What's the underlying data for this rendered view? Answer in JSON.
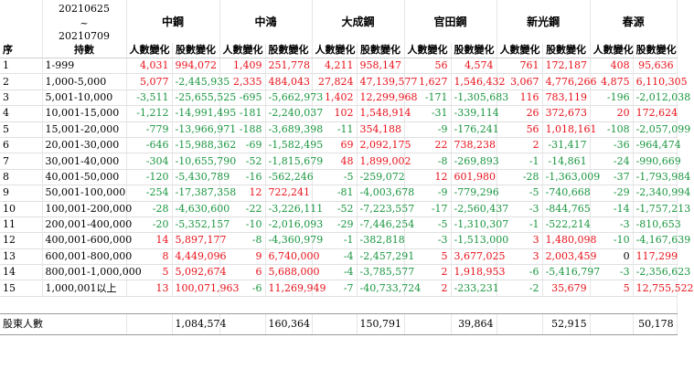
{
  "header": {
    "date_start": "20210625",
    "date_sep": "~",
    "date_end": "20210709",
    "col_seq": "序",
    "col_level": "持數",
    "sub_people": "人數變化",
    "sub_shares": "股數變化",
    "brokers": [
      "中鋼",
      "中鴻",
      "大成鋼",
      "官田鋼",
      "新光鋼",
      "春源"
    ]
  },
  "rows": [
    {
      "seq": "1",
      "level": "1-999",
      "cells": [
        [
          "4,031",
          "pos"
        ],
        [
          "994,072",
          "pos"
        ],
        [
          "1,409",
          "pos"
        ],
        [
          "251,778",
          "pos"
        ],
        [
          "4,211",
          "pos"
        ],
        [
          "958,147",
          "pos"
        ],
        [
          "56",
          "pos"
        ],
        [
          "4,574",
          "pos"
        ],
        [
          "761",
          "pos"
        ],
        [
          "172,187",
          "pos"
        ],
        [
          "408",
          "pos"
        ],
        [
          "95,636",
          "pos"
        ]
      ]
    },
    {
      "seq": "2",
      "level": "1,000-5,000",
      "cells": [
        [
          "5,077",
          "pos"
        ],
        [
          "-2,445,935",
          "neg"
        ],
        [
          "2,335",
          "pos"
        ],
        [
          "484,043",
          "pos"
        ],
        [
          "27,824",
          "pos"
        ],
        [
          "47,139,577",
          "pos"
        ],
        [
          "1,627",
          "pos"
        ],
        [
          "1,546,432",
          "pos"
        ],
        [
          "3,067",
          "pos"
        ],
        [
          "4,776,266",
          "pos"
        ],
        [
          "4,875",
          "pos"
        ],
        [
          "6,110,305",
          "pos"
        ]
      ]
    },
    {
      "seq": "3",
      "level": "5,001-10,000",
      "cells": [
        [
          "-3,511",
          "neg"
        ],
        [
          "-25,655,525",
          "neg"
        ],
        [
          "-695",
          "neg"
        ],
        [
          "-5,662,973",
          "neg"
        ],
        [
          "1,402",
          "pos"
        ],
        [
          "12,299,968",
          "pos"
        ],
        [
          "-171",
          "neg"
        ],
        [
          "-1,305,683",
          "neg"
        ],
        [
          "116",
          "pos"
        ],
        [
          "783,119",
          "pos"
        ],
        [
          "-196",
          "neg"
        ],
        [
          "-2,012,038",
          "neg"
        ]
      ]
    },
    {
      "seq": "4",
      "level": "10,001-15,000",
      "cells": [
        [
          "-1,212",
          "neg"
        ],
        [
          "-14,991,495",
          "neg"
        ],
        [
          "-181",
          "neg"
        ],
        [
          "-2,240,037",
          "neg"
        ],
        [
          "102",
          "pos"
        ],
        [
          "1,548,914",
          "pos"
        ],
        [
          "-31",
          "neg"
        ],
        [
          "-339,114",
          "neg"
        ],
        [
          "26",
          "pos"
        ],
        [
          "372,673",
          "pos"
        ],
        [
          "20",
          "pos"
        ],
        [
          "172,624",
          "pos"
        ]
      ]
    },
    {
      "seq": "5",
      "level": "15,001-20,000",
      "cells": [
        [
          "-779",
          "neg"
        ],
        [
          "-13,966,971",
          "neg"
        ],
        [
          "-188",
          "neg"
        ],
        [
          "-3,689,398",
          "neg"
        ],
        [
          "-11",
          "neg"
        ],
        [
          "354,188",
          "pos"
        ],
        [
          "-9",
          "neg"
        ],
        [
          "-176,241",
          "neg"
        ],
        [
          "56",
          "pos"
        ],
        [
          "1,018,161",
          "pos"
        ],
        [
          "-108",
          "neg"
        ],
        [
          "-2,057,099",
          "neg"
        ]
      ]
    },
    {
      "seq": "6",
      "level": "20,001-30,000",
      "cells": [
        [
          "-646",
          "neg"
        ],
        [
          "-15,988,362",
          "neg"
        ],
        [
          "-69",
          "neg"
        ],
        [
          "-1,582,495",
          "neg"
        ],
        [
          "69",
          "pos"
        ],
        [
          "2,092,175",
          "pos"
        ],
        [
          "22",
          "pos"
        ],
        [
          "738,238",
          "pos"
        ],
        [
          "2",
          "pos"
        ],
        [
          "-31,417",
          "neg"
        ],
        [
          "-36",
          "neg"
        ],
        [
          "-964,474",
          "neg"
        ]
      ]
    },
    {
      "seq": "7",
      "level": "30,001-40,000",
      "cells": [
        [
          "-304",
          "neg"
        ],
        [
          "-10,655,790",
          "neg"
        ],
        [
          "-52",
          "neg"
        ],
        [
          "-1,815,679",
          "neg"
        ],
        [
          "48",
          "pos"
        ],
        [
          "1,899,002",
          "pos"
        ],
        [
          "-8",
          "neg"
        ],
        [
          "-269,893",
          "neg"
        ],
        [
          "-1",
          "neg"
        ],
        [
          "-14,861",
          "neg"
        ],
        [
          "-24",
          "neg"
        ],
        [
          "-990,669",
          "neg"
        ]
      ]
    },
    {
      "seq": "8",
      "level": "40,001-50,000",
      "cells": [
        [
          "-120",
          "neg"
        ],
        [
          "-5,430,789",
          "neg"
        ],
        [
          "-16",
          "neg"
        ],
        [
          "-562,246",
          "neg"
        ],
        [
          "-5",
          "neg"
        ],
        [
          "-259,072",
          "neg"
        ],
        [
          "12",
          "pos"
        ],
        [
          "601,980",
          "pos"
        ],
        [
          "-28",
          "neg"
        ],
        [
          "-1,363,009",
          "neg"
        ],
        [
          "-37",
          "neg"
        ],
        [
          "-1,793,984",
          "neg"
        ]
      ]
    },
    {
      "seq": "9",
      "level": "50,001-100,000",
      "cells": [
        [
          "-254",
          "neg"
        ],
        [
          "-17,387,358",
          "neg"
        ],
        [
          "12",
          "pos"
        ],
        [
          "722,241",
          "pos"
        ],
        [
          "-81",
          "neg"
        ],
        [
          "-4,003,678",
          "neg"
        ],
        [
          "-9",
          "neg"
        ],
        [
          "-779,296",
          "neg"
        ],
        [
          "-5",
          "neg"
        ],
        [
          "-740,668",
          "neg"
        ],
        [
          "-29",
          "neg"
        ],
        [
          "-2,340,994",
          "neg"
        ]
      ]
    },
    {
      "seq": "10",
      "level": "100,001-200,000",
      "cells": [
        [
          "-28",
          "neg"
        ],
        [
          "-4,630,600",
          "neg"
        ],
        [
          "-22",
          "neg"
        ],
        [
          "-3,226,111",
          "neg"
        ],
        [
          "-52",
          "neg"
        ],
        [
          "-7,223,557",
          "neg"
        ],
        [
          "-17",
          "neg"
        ],
        [
          "-2,560,437",
          "neg"
        ],
        [
          "-3",
          "neg"
        ],
        [
          "-844,765",
          "neg"
        ],
        [
          "-14",
          "neg"
        ],
        [
          "-1,757,213",
          "neg"
        ]
      ]
    },
    {
      "seq": "11",
      "level": "200,001-400,000",
      "cells": [
        [
          "-20",
          "neg"
        ],
        [
          "-5,352,157",
          "neg"
        ],
        [
          "-10",
          "neg"
        ],
        [
          "-2,016,093",
          "neg"
        ],
        [
          "-29",
          "neg"
        ],
        [
          "-7,446,254",
          "neg"
        ],
        [
          "-5",
          "neg"
        ],
        [
          "-1,310,307",
          "neg"
        ],
        [
          "-1",
          "neg"
        ],
        [
          "-522,214",
          "neg"
        ],
        [
          "-3",
          "neg"
        ],
        [
          "-810,653",
          "neg"
        ]
      ]
    },
    {
      "seq": "12",
      "level": "400,001-600,000",
      "cells": [
        [
          "14",
          "pos"
        ],
        [
          "5,897,177",
          "pos"
        ],
        [
          "-8",
          "neg"
        ],
        [
          "-4,360,979",
          "neg"
        ],
        [
          "-1",
          "neg"
        ],
        [
          "-382,818",
          "neg"
        ],
        [
          "-3",
          "neg"
        ],
        [
          "-1,513,000",
          "neg"
        ],
        [
          "3",
          "pos"
        ],
        [
          "1,480,098",
          "pos"
        ],
        [
          "-10",
          "neg"
        ],
        [
          "-4,167,639",
          "neg"
        ]
      ]
    },
    {
      "seq": "13",
      "level": "600,001-800,000",
      "cells": [
        [
          "8",
          "pos"
        ],
        [
          "4,449,096",
          "pos"
        ],
        [
          "9",
          "pos"
        ],
        [
          "6,740,000",
          "pos"
        ],
        [
          "-4",
          "neg"
        ],
        [
          "-2,457,291",
          "neg"
        ],
        [
          "5",
          "pos"
        ],
        [
          "3,677,025",
          "pos"
        ],
        [
          "3",
          "pos"
        ],
        [
          "2,003,459",
          "pos"
        ],
        [
          "0",
          "blk"
        ],
        [
          "117,299",
          "pos"
        ]
      ]
    },
    {
      "seq": "14",
      "level": "800,001-1,000,000",
      "cells": [
        [
          "5",
          "pos"
        ],
        [
          "5,092,674",
          "pos"
        ],
        [
          "6",
          "pos"
        ],
        [
          "5,688,000",
          "pos"
        ],
        [
          "-4",
          "neg"
        ],
        [
          "-3,785,577",
          "neg"
        ],
        [
          "2",
          "pos"
        ],
        [
          "1,918,953",
          "pos"
        ],
        [
          "-6",
          "neg"
        ],
        [
          "-5,416,797",
          "neg"
        ],
        [
          "-3",
          "neg"
        ],
        [
          "-2,356,623",
          "neg"
        ]
      ]
    },
    {
      "seq": "15",
      "level": "1,000,001以上",
      "cells": [
        [
          "13",
          "pos"
        ],
        [
          "100,071,963",
          "pos"
        ],
        [
          "-6",
          "neg"
        ],
        [
          "11,269,949",
          "pos"
        ],
        [
          "-7",
          "neg"
        ],
        [
          "-40,733,724",
          "neg"
        ],
        [
          "2",
          "pos"
        ],
        [
          "-233,231",
          "neg"
        ],
        [
          "-2",
          "neg"
        ],
        [
          "35,679",
          "pos"
        ],
        [
          "5",
          "pos"
        ],
        [
          "12,755,522",
          "pos"
        ]
      ]
    }
  ],
  "totals": {
    "label": "股東人數",
    "values": [
      "1,084,574",
      "160,364",
      "150,791",
      "39,864",
      "52,915",
      "50,178"
    ]
  },
  "colors": {
    "positive": "#e8111a",
    "negative": "#1a9640"
  }
}
